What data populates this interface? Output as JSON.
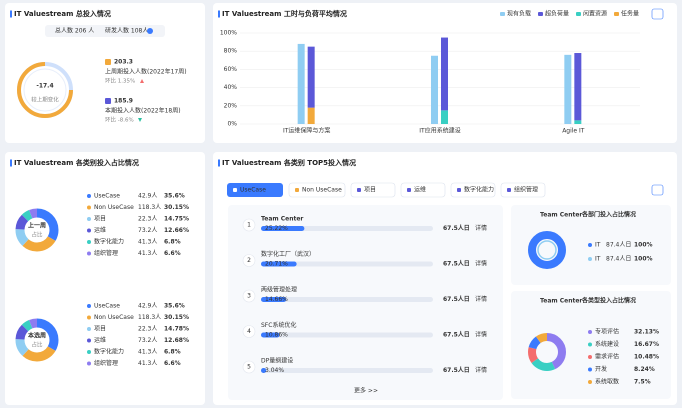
{
  "overview": {
    "title": "IT Valuestream 总投入情况",
    "pills": [
      "总人数 206 人",
      "研发人数 108人"
    ],
    "change": "-17.4",
    "change_label": "较上期变化",
    "items": [
      {
        "value": "203.3",
        "label": "上周期投入人数(2022年17周)",
        "trend": "环比 1.35%"
      },
      {
        "value": "185.9",
        "label": "本期投入人数(2022年18周)",
        "trend": "环比 -8.6%"
      }
    ]
  },
  "workload": {
    "title": "IT Valuestream 工时与负荷平均情况",
    "ylim": [
      0,
      100
    ],
    "yticks": [
      {
        "value": 0,
        "label": "0%"
      },
      {
        "value": 20,
        "label": "20%"
      },
      {
        "value": 40,
        "label": "40%"
      },
      {
        "value": 60,
        "label": "60%"
      },
      {
        "value": 80,
        "label": "80%"
      },
      {
        "value": 100,
        "label": "100%"
      }
    ],
    "categories": [
      "IT运维保障与方案",
      "IT应用系统建设",
      "Agile IT"
    ],
    "series": [
      {
        "name": "现有负载",
        "color": "#8fcdf2",
        "values": [
          88,
          75,
          76
        ]
      },
      {
        "name": "超负荷量",
        "color": "#5b58d8",
        "values": [
          67,
          80,
          74
        ]
      },
      {
        "name": "闲置资源",
        "color": "#39cfc3",
        "values": [
          0,
          15,
          4
        ]
      },
      {
        "name": "任务量",
        "color": "#f2a93b",
        "values": [
          18,
          0,
          0
        ]
      }
    ],
    "stack_order": [
      3,
      2,
      1
    ]
  },
  "category_share": {
    "title": "IT Valuestream 各类别投入占比情况",
    "donuts": [
      {
        "label": "上一周",
        "sub": "占比",
        "names": [
          "UseCase",
          "Non UseCase",
          "项目",
          "运维",
          "数字化能力",
          "组织管理"
        ],
        "amounts": [
          "42.9人",
          "118.3人",
          "22.3人",
          "73.2人",
          "41.3人",
          "41.3人"
        ],
        "values": [
          35.6,
          30.15,
          14.75,
          12.66,
          6.8,
          6.6
        ],
        "value_labels": [
          "35.6%",
          "30.15%",
          "14.75%",
          "12.66%",
          "6.8%",
          "6.6%"
        ]
      },
      {
        "label": "本选周",
        "sub": "占比",
        "names": [
          "UseCase",
          "Non UseCase",
          "项目",
          "运维",
          "数字化能力",
          "组织管理"
        ],
        "amounts": [
          "42.9人",
          "118.3人",
          "22.3人",
          "73.2人",
          "41.3人",
          "41.3人"
        ],
        "values": [
          35.6,
          30.15,
          14.78,
          12.68,
          6.8,
          6.6
        ],
        "value_labels": [
          "35.6%",
          "30.15%",
          "14.78%",
          "12.68%",
          "6.8%",
          "6.6%"
        ]
      }
    ],
    "colors": [
      "#3a7afe",
      "#f2a93b",
      "#8fcdf2",
      "#5b58d8",
      "#39cfc3",
      "#8e7cf0"
    ]
  },
  "top5": {
    "title": "IT Valuestream 各类别 TOP5投入情况",
    "tabs": [
      "UseCase",
      "Non UseCase",
      "项目",
      "运维",
      "数字化能力",
      "组织管理"
    ],
    "items": [
      {
        "rank": "1",
        "name": "Team Center",
        "pct": 25.22,
        "pct_label": "25.22%",
        "amount": "67.5人日",
        "link": "详情"
      },
      {
        "rank": "2",
        "name": "数字化工厂（武汉）",
        "pct": 20.71,
        "pct_label": "20.71%",
        "amount": "67.5人日",
        "link": "详情"
      },
      {
        "rank": "3",
        "name": "两级管理处理",
        "pct": 14.66,
        "pct_label": "14.66%",
        "amount": "67.5人日",
        "link": "详情"
      },
      {
        "rank": "4",
        "name": "SFC系统优化",
        "pct": 10.86,
        "pct_label": "10.86%",
        "amount": "67.5人日",
        "link": "详情"
      },
      {
        "rank": "5",
        "name": "DP量纲建设",
        "pct": 3.04,
        "pct_label": "3.04%",
        "amount": "67.5人日",
        "link": "详情"
      }
    ],
    "more": "更多 >>",
    "dept": {
      "title_highlight": "Team Center",
      "title": "各部门投入占比情况",
      "names": [
        "IT",
        "IT"
      ],
      "amounts": [
        "87.4人日",
        "87.4人日"
      ],
      "values": [
        100,
        100
      ],
      "value_labels": [
        "100%",
        "100%"
      ],
      "colors": [
        "#3a7afe",
        "#8fcdf2"
      ]
    },
    "types": {
      "title_highlight": "Team Center",
      "title": "各类型投入占比情况",
      "names": [
        "专项评估",
        "系统建设",
        "需求评估",
        "开发",
        "系统取数"
      ],
      "values": [
        32.13,
        16.67,
        10.48,
        8.24,
        7.5
      ],
      "value_labels": [
        "32.13%",
        "16.67%",
        "10.48%",
        "8.24%",
        "7.5%"
      ],
      "colors": [
        "#8e7cf0",
        "#39cfc3",
        "#f46d6d",
        "#3a7afe",
        "#f2a93b"
      ]
    }
  }
}
